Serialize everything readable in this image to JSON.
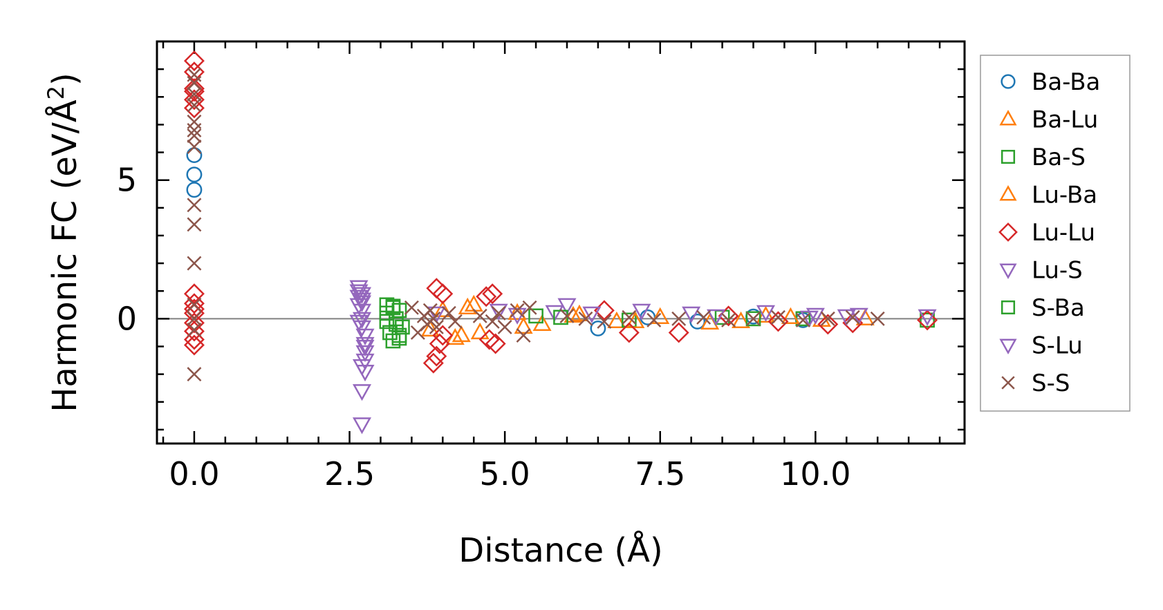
{
  "chart_data": {
    "type": "scatter",
    "title": "",
    "xlabel": "Distance (Å)",
    "ylabel": "Harmonic FC (eV/Å",
    "ylabel_sup": "2",
    "ylabel_close": ")",
    "xlim": [
      -0.6,
      12.4
    ],
    "ylim": [
      -4.5,
      10.0
    ],
    "xticks": [
      0.0,
      2.5,
      5.0,
      7.5,
      10.0
    ],
    "xtick_labels": [
      "0.0",
      "2.5",
      "5.0",
      "7.5",
      "10.0"
    ],
    "yticks": [
      0,
      5
    ],
    "ytick_labels": [
      "0",
      "5"
    ],
    "reference_line_y": 0,
    "legend_position": "outside-right",
    "series": [
      {
        "name": "Ba-Ba",
        "marker": "circle",
        "color": "#1f77b4",
        "x": [
          0,
          0,
          0,
          6.5,
          7.3,
          8.1,
          9.0,
          9.8
        ],
        "y": [
          5.9,
          5.2,
          4.65,
          -0.35,
          0.05,
          -0.1,
          0.08,
          -0.05
        ]
      },
      {
        "name": "Ba-Lu",
        "marker": "triangle-up",
        "color": "#ff7f0e",
        "x": [
          3.8,
          4.0,
          4.2,
          4.4,
          4.6,
          5.2,
          5.6,
          6.1,
          6.8,
          7.5,
          8.3,
          9.2,
          10.1,
          10.8
        ],
        "y": [
          -0.4,
          0.3,
          -0.7,
          0.4,
          -0.5,
          0.2,
          -0.2,
          0.1,
          -0.1,
          0.05,
          -0.15,
          0.1,
          -0.05,
          0.0
        ]
      },
      {
        "name": "Ba-S",
        "marker": "square",
        "color": "#2ca02c",
        "x": [
          3.1,
          3.1,
          3.1,
          3.15,
          3.2,
          3.2,
          3.25,
          3.3,
          3.3,
          3.35,
          5.5,
          7.0,
          8.5,
          9.8,
          11.8
        ],
        "y": [
          0.5,
          0.2,
          -0.1,
          -0.5,
          -0.8,
          0.4,
          0.0,
          -0.6,
          0.3,
          -0.3,
          0.1,
          -0.05,
          0.05,
          0.0,
          -0.05
        ]
      },
      {
        "name": "Lu-Ba",
        "marker": "triangle-up",
        "color": "#ff7f0e",
        "x": [
          4.3,
          4.5,
          5.3,
          6.2,
          7.1,
          8.8,
          9.6
        ],
        "y": [
          -0.6,
          0.5,
          -0.3,
          0.15,
          -0.1,
          -0.1,
          0.05
        ]
      },
      {
        "name": "Lu-Lu",
        "marker": "diamond",
        "color": "#d62728",
        "x": [
          0,
          0,
          0,
          0,
          0,
          0,
          0,
          0,
          0,
          0,
          0,
          0,
          0,
          0,
          3.85,
          3.9,
          3.9,
          3.95,
          4.0,
          4.0,
          4.7,
          4.75,
          4.8,
          4.85,
          6.6,
          7.0,
          7.8,
          8.6,
          9.4,
          10.2,
          10.6,
          11.8
        ],
        "y": [
          9.3,
          8.9,
          8.2,
          7.9,
          8.3,
          7.6,
          0.9,
          0.55,
          0.2,
          -0.15,
          -0.45,
          -0.75,
          -0.95,
          0.35,
          -1.6,
          -1.35,
          1.1,
          -0.9,
          0.9,
          -0.6,
          0.8,
          -0.75,
          0.9,
          -0.9,
          0.3,
          -0.5,
          -0.5,
          0.1,
          -0.1,
          -0.2,
          -0.15,
          -0.05
        ]
      },
      {
        "name": "Lu-S",
        "marker": "triangle-down",
        "color": "#9467bd",
        "x": [
          2.65,
          2.65,
          2.65,
          2.7,
          2.7,
          2.7,
          2.7,
          2.75,
          2.75,
          2.75,
          2.75,
          2.65,
          2.7,
          2.75,
          2.65,
          2.7,
          2.7,
          2.7,
          4.9,
          5.8,
          6.0,
          7.2,
          8.0,
          9.2,
          10.0,
          10.5,
          10.7,
          11.8
        ],
        "y": [
          1.15,
          1.0,
          0.8,
          0.6,
          0.3,
          0.0,
          -0.3,
          -0.6,
          -0.9,
          -1.2,
          -1.5,
          0.5,
          -1.7,
          -1.9,
          -0.1,
          0.9,
          -2.6,
          -3.8,
          0.3,
          0.25,
          0.5,
          0.3,
          0.2,
          0.25,
          0.15,
          0.1,
          0.15,
          0.1
        ]
      },
      {
        "name": "S-Ba",
        "marker": "square",
        "color": "#2ca02c",
        "x": [
          3.2,
          3.3,
          3.25,
          5.9,
          9.0
        ],
        "y": [
          0.45,
          -0.7,
          -0.2,
          0.05,
          0.0
        ]
      },
      {
        "name": "S-Lu",
        "marker": "triangle-down",
        "color": "#9467bd",
        "x": [
          2.7,
          2.75,
          3.9,
          5.2,
          6.4,
          8.4,
          9.9
        ],
        "y": [
          0.7,
          -1.0,
          0.2,
          0.15,
          0.2,
          0.1,
          0.05
        ]
      },
      {
        "name": "S-S",
        "marker": "x",
        "color": "#8c564b",
        "x": [
          0,
          0,
          0,
          0,
          0,
          0,
          0,
          0,
          0,
          0,
          0,
          0,
          0,
          0,
          0,
          3.5,
          3.6,
          3.7,
          3.75,
          3.8,
          3.85,
          3.9,
          4.1,
          4.2,
          4.6,
          4.8,
          4.9,
          5.0,
          5.2,
          5.3,
          5.4,
          6.0,
          6.3,
          6.6,
          7.0,
          7.4,
          7.8,
          8.2,
          8.6,
          9.0,
          9.4,
          9.8,
          10.2,
          10.6,
          11.0
        ],
        "y": [
          8.8,
          8.5,
          8.1,
          7.7,
          7.1,
          6.8,
          6.6,
          6.2,
          4.1,
          3.4,
          2.0,
          0.5,
          0.0,
          -0.4,
          -2.0,
          0.4,
          -0.5,
          0.1,
          -0.2,
          0.3,
          0.0,
          -0.3,
          0.2,
          -0.1,
          0.1,
          -0.1,
          0.2,
          -0.3,
          0.3,
          -0.6,
          0.4,
          0.1,
          0.0,
          -0.1,
          0.05,
          -0.05,
          0.0,
          0.05,
          -0.05,
          0.0,
          0.05,
          -0.05,
          0.0,
          0.05,
          0.0
        ]
      }
    ]
  }
}
